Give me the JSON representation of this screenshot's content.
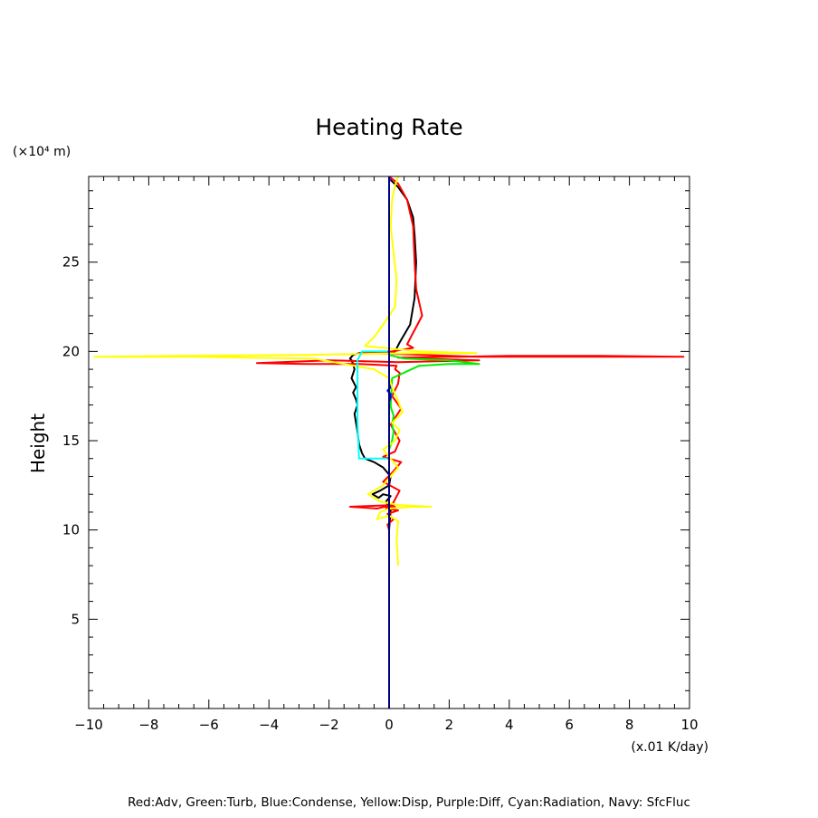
{
  "chart_data": {
    "type": "line",
    "title": "Heating Rate",
    "ylabel": "Height",
    "y_unit": "(×10⁴ m)",
    "x_unit": "(x.01 K/day)",
    "xlim": [
      -10,
      10
    ],
    "ylim": [
      0,
      29.8
    ],
    "x_ticks": [
      "−10",
      "−8",
      "−6",
      "−4",
      "−2",
      "0",
      "2",
      "4",
      "6",
      "8",
      "10"
    ],
    "y_ticks": [
      "5",
      "10",
      "15",
      "20",
      "25"
    ],
    "grid": false,
    "legend_text": "Red:Adv, Green:Turb, Blue:Condense, Yellow:Disp, Purple:Diff, Cyan:Radiation, Navy: SfcFluc",
    "legend_position": "bottom",
    "series": [
      {
        "color": "#000000",
        "x": [
          0,
          0,
          0.05,
          -0.1,
          0.05,
          -0.2,
          -0.35,
          -0.45,
          -0.55,
          -0.3,
          0,
          0.05,
          -0.2,
          -0.5,
          -0.8,
          -0.9,
          -1.0,
          -1.05,
          -1.1,
          -1.15,
          -1.05,
          -1.1,
          -1.2,
          -1.1,
          -1.25,
          -1.15,
          -1.2,
          -1.25,
          -1.3,
          -1.2,
          -1.0,
          0.2,
          0.35,
          0.7,
          0.85,
          0.9,
          0.85,
          0.8,
          0.6,
          0.3,
          0.05,
          0
        ],
        "y": [
          0,
          10,
          11.1,
          11.6,
          11.9,
          12.0,
          11.8,
          11.9,
          12.0,
          12.2,
          12.5,
          13.0,
          13.5,
          13.8,
          14.0,
          14.3,
          14.8,
          15.5,
          16.0,
          16.5,
          17.0,
          17.3,
          17.7,
          18.0,
          18.5,
          19.0,
          19.3,
          19.5,
          19.6,
          19.8,
          19.9,
          20.0,
          20.5,
          21.5,
          23.0,
          25.0,
          26.5,
          27.5,
          28.5,
          29.2,
          29.6,
          29.8
        ]
      },
      {
        "color": "#ff0000",
        "x": [
          0,
          -0.05,
          0.15,
          -0.05,
          0.3,
          -0.1,
          0.2,
          -0.15,
          0.15,
          -1.3,
          -0.4,
          0.1,
          0.35,
          -0.2,
          0.1,
          0.4,
          -0.2,
          0.2,
          0.35,
          0.05,
          0.4,
          0.1,
          0.3,
          0.35,
          0.2,
          0.25,
          -0.35,
          -1.0,
          -2.8,
          -4.4,
          -2.0,
          0.3,
          3.0,
          1.0,
          0.3,
          4.0,
          7.0,
          9.8,
          3.0,
          0.3,
          -1.0,
          0.1,
          0.8,
          0.6,
          1.1,
          0.9,
          0.85,
          0.8,
          0.6,
          0.3,
          0
        ],
        "y": [
          10.0,
          10.3,
          10.6,
          10.9,
          11.1,
          11.2,
          11.3,
          11.3,
          11.4,
          11.3,
          11.2,
          11.4,
          12.2,
          12.7,
          13.2,
          13.8,
          14.1,
          14.4,
          15.0,
          15.9,
          16.8,
          17.5,
          18.2,
          18.8,
          19.0,
          19.2,
          19.25,
          19.3,
          19.3,
          19.35,
          19.5,
          19.4,
          19.5,
          19.6,
          19.65,
          19.75,
          19.75,
          19.7,
          19.7,
          19.85,
          19.9,
          20.0,
          20.2,
          20.4,
          22.0,
          23.5,
          25.0,
          27.0,
          28.5,
          29.4,
          29.8
        ]
      },
      {
        "color": "#00ee00",
        "x": [
          0,
          0.1,
          0.15,
          0.1,
          0.15,
          0.05,
          0.1,
          1.0,
          2.0,
          3.0,
          2.0,
          0.5,
          0
        ],
        "y": [
          14.5,
          15.0,
          15.5,
          15.9,
          16.4,
          16.9,
          18.5,
          19.2,
          19.3,
          19.3,
          19.5,
          19.6,
          19.8
        ]
      },
      {
        "color": "#0000ff",
        "x": [
          0,
          0.05,
          0.05,
          -0.05,
          0.05,
          0
        ],
        "y": [
          17.2,
          17.4,
          17.6,
          17.8,
          18.0,
          18.2
        ]
      },
      {
        "color": "#ffff00",
        "x": [
          0.3,
          0.25,
          0.3,
          0.0,
          -0.4,
          -0.3,
          0.0,
          0.8,
          1.4,
          0.3,
          -0.3,
          -0.7,
          -0.2,
          0.05,
          0.3,
          0.05,
          -0.2,
          0.2,
          0.35,
          0.1,
          0.45,
          0.3,
          0.2,
          0.1,
          0,
          -0.5,
          -2.5,
          -6.5,
          -9.8,
          -7.0,
          -3.0,
          -1.0,
          1.0,
          2.9,
          1.0,
          -0.8,
          -0.5,
          -0.2,
          0.2,
          0.25,
          0.15,
          0.05,
          0.1,
          0.2,
          0.3
        ],
        "y": [
          8.0,
          9.5,
          10.5,
          10.8,
          10.6,
          11.0,
          11.2,
          11.3,
          11.3,
          11.4,
          11.6,
          12.0,
          12.5,
          13.0,
          13.5,
          14.0,
          14.5,
          15.0,
          15.6,
          16.0,
          16.6,
          17.2,
          17.6,
          18.0,
          18.5,
          19.0,
          19.6,
          19.7,
          19.7,
          19.75,
          19.8,
          19.85,
          19.9,
          19.9,
          20.0,
          20.3,
          20.8,
          21.5,
          22.5,
          24.0,
          25.5,
          27.0,
          28.5,
          29.3,
          29.8
        ]
      },
      {
        "color": "#aa00aa",
        "x": [
          0,
          0.05,
          0
        ],
        "y": [
          29.5,
          29.7,
          29.8
        ]
      },
      {
        "color": "#00ffff",
        "x": [
          -0.05,
          -1.0,
          -1.05,
          -1.05,
          -0.9,
          -0.05
        ],
        "y": [
          14.0,
          14.0,
          16.0,
          19.5,
          20.0,
          20.0
        ]
      },
      {
        "color": "#000080",
        "x": [
          0,
          0
        ],
        "y": [
          0,
          29.8
        ]
      }
    ]
  }
}
